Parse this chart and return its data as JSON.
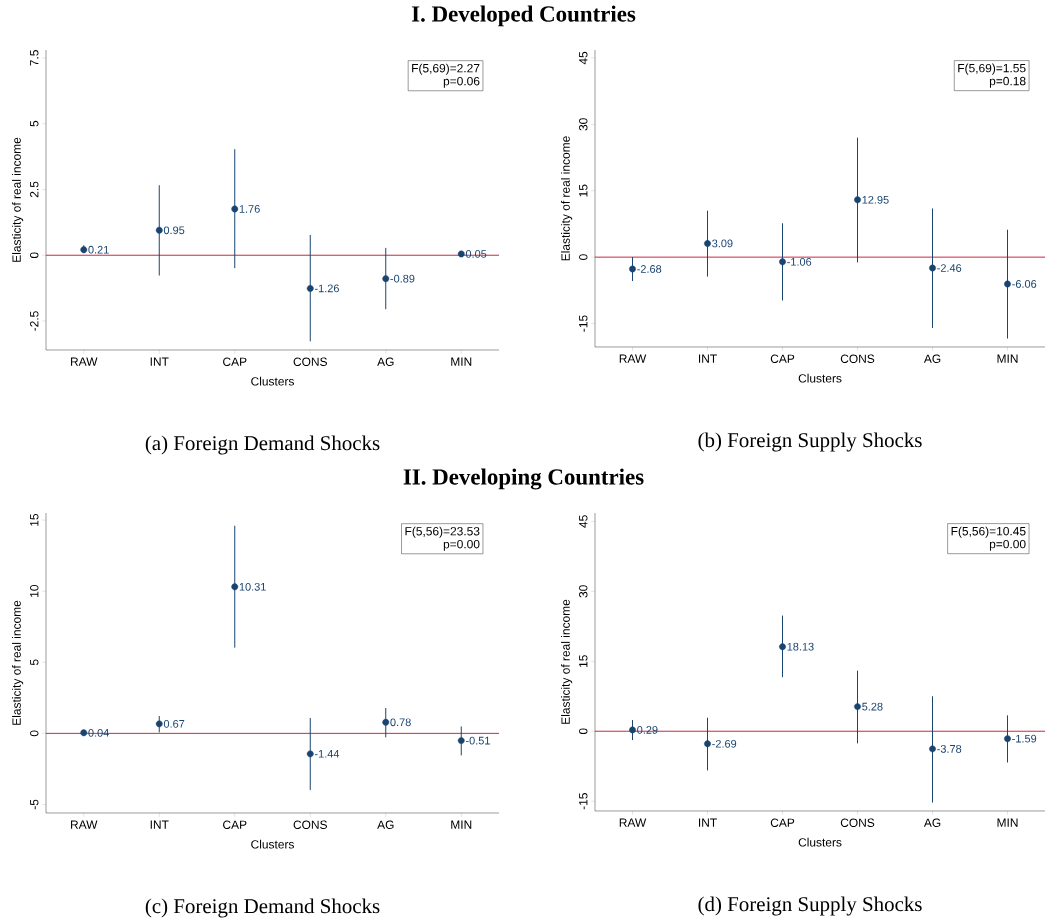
{
  "chart_data": [
    {
      "type": "scatter",
      "title": "I. Developed Countries",
      "xlabel": "Clusters",
      "ylabel": "Elasticity of real income",
      "categories": [
        "RAW",
        "INT",
        "CAP",
        "CONS",
        "AG",
        "MIN"
      ],
      "values": [
        0.21,
        0.95,
        1.76,
        -1.26,
        -0.89,
        0.05
      ],
      "errors": [
        [
          0.08,
          0.38
        ],
        [
          -0.77,
          2.66
        ],
        [
          -0.49,
          4.03
        ],
        [
          -3.27,
          0.77
        ],
        [
          -2.05,
          0.28
        ],
        null
      ],
      "color": "#1a4470",
      "marker": "circle",
      "data_labels": true,
      "ylim": [
        -3.6,
        7.8
      ],
      "yticks": [
        -2.5,
        0,
        2.5,
        5,
        7.5
      ],
      "ref_lines": [
        {
          "axis": "y",
          "value": 0,
          "color": "#c8102e"
        }
      ],
      "annotations": [
        "F(5,69)=2.27",
        "p=0.06",
        "(a) Foreign Demand Shocks"
      ]
    },
    {
      "type": "scatter",
      "xlabel": "Clusters",
      "ylabel": "Elasticity of real income",
      "categories": [
        "RAW",
        "INT",
        "CAP",
        "CONS",
        "AG",
        "MIN"
      ],
      "values": [
        -2.68,
        3.09,
        -1.06,
        12.95,
        -2.46,
        -6.06
      ],
      "errors": [
        [
          -5.4,
          0
        ],
        [
          -4.4,
          10.5
        ],
        [
          -9.8,
          7.65
        ],
        [
          -1.2,
          27.0
        ],
        [
          -16.0,
          11.0
        ],
        [
          -18.4,
          6.2
        ]
      ],
      "color": "#1a4470",
      "marker": "circle",
      "data_labels": true,
      "ylim": [
        -20.3,
        46.8
      ],
      "yticks": [
        -15,
        0,
        15,
        30,
        45
      ],
      "ref_lines": [
        {
          "axis": "y",
          "value": 0,
          "color": "#c8102e"
        }
      ],
      "annotations": [
        "F(5,69)=1.55",
        "p=0.18",
        "(b) Foreign Supply Shocks"
      ]
    },
    {
      "type": "scatter",
      "title": "II. Developing Countries",
      "xlabel": "Clusters",
      "ylabel": "Elasticity of real income",
      "categories": [
        "RAW",
        "INT",
        "CAP",
        "CONS",
        "AG",
        "MIN"
      ],
      "values": [
        0.04,
        0.67,
        10.31,
        -1.44,
        0.78,
        -0.51
      ],
      "errors": [
        null,
        [
          0.07,
          1.22
        ],
        [
          6.03,
          14.6
        ],
        [
          -3.99,
          1.08
        ],
        [
          -0.28,
          1.78
        ],
        [
          -1.55,
          0.49
        ]
      ],
      "color": "#1a4470",
      "marker": "circle",
      "data_labels": true,
      "ylim": [
        -5.6,
        15.5
      ],
      "yticks": [
        -5,
        0,
        5,
        10,
        15
      ],
      "ref_lines": [
        {
          "axis": "y",
          "value": 0,
          "color": "#c8102e"
        }
      ],
      "annotations": [
        "F(5,56)=23.53",
        "p=0.00",
        "(c) Foreign Demand Shocks"
      ]
    },
    {
      "type": "scatter",
      "xlabel": "Clusters",
      "ylabel": "Elasticity of real income",
      "categories": [
        "RAW",
        "INT",
        "CAP",
        "CONS",
        "AG",
        "MIN"
      ],
      "values": [
        0.29,
        -2.69,
        18.13,
        5.28,
        -3.78,
        -1.59
      ],
      "errors": [
        [
          -1.9,
          2.4
        ],
        [
          -8.4,
          2.9
        ],
        [
          11.6,
          24.8
        ],
        [
          -2.6,
          13.0
        ],
        [
          -15.3,
          7.5
        ],
        [
          -6.7,
          3.4
        ]
      ],
      "color": "#1a4470",
      "marker": "circle",
      "data_labels": true,
      "ylim": [
        -17.1,
        46.8
      ],
      "yticks": [
        -15,
        0,
        15,
        30,
        45
      ],
      "ref_lines": [
        {
          "axis": "y",
          "value": 0,
          "color": "#c8102e"
        }
      ],
      "annotations": [
        "F(5,56)=10.45",
        "p=0.00",
        "(d) Foreign Supply Shocks"
      ]
    }
  ]
}
